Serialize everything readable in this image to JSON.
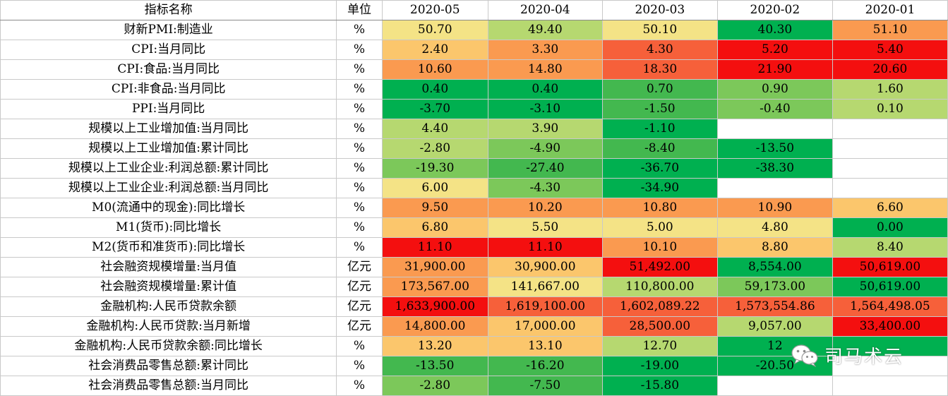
{
  "header": {
    "name_label": "指标名称",
    "unit_label": "单位",
    "periods": [
      "2020-05",
      "2020-04",
      "2020-03",
      "2020-02",
      "2020-01"
    ]
  },
  "colors": {
    "dark_green": "#00b050",
    "green": "#43b84f",
    "mid_green": "#7cc85a",
    "yellow_green": "#b6d870",
    "yellow": "#f4e386",
    "light_orange": "#fbc66c",
    "orange": "#fa9a50",
    "red_orange": "#f6603a",
    "red": "#f40f0f",
    "empty": "#ffffff"
  },
  "rows": [
    {
      "name": "财新PMI:制造业",
      "unit": "%",
      "cells": [
        {
          "v": "50.70",
          "c": "yellow"
        },
        {
          "v": "49.40",
          "c": "yellow_green"
        },
        {
          "v": "50.10",
          "c": "yellow"
        },
        {
          "v": "40.30",
          "c": "dark_green"
        },
        {
          "v": "51.10",
          "c": "orange"
        }
      ]
    },
    {
      "name": "CPI:当月同比",
      "unit": "%",
      "cells": [
        {
          "v": "2.40",
          "c": "light_orange"
        },
        {
          "v": "3.30",
          "c": "orange"
        },
        {
          "v": "4.30",
          "c": "red_orange"
        },
        {
          "v": "5.20",
          "c": "red"
        },
        {
          "v": "5.40",
          "c": "red"
        }
      ]
    },
    {
      "name": "CPI:食品:当月同比",
      "unit": "%",
      "cells": [
        {
          "v": "10.60",
          "c": "orange"
        },
        {
          "v": "14.80",
          "c": "orange"
        },
        {
          "v": "18.30",
          "c": "red_orange"
        },
        {
          "v": "21.90",
          "c": "red"
        },
        {
          "v": "20.60",
          "c": "red"
        }
      ]
    },
    {
      "name": "CPI:非食品:当月同比",
      "unit": "%",
      "cells": [
        {
          "v": "0.40",
          "c": "dark_green"
        },
        {
          "v": "0.40",
          "c": "dark_green"
        },
        {
          "v": "0.70",
          "c": "green"
        },
        {
          "v": "0.90",
          "c": "mid_green"
        },
        {
          "v": "1.60",
          "c": "yellow_green"
        }
      ]
    },
    {
      "name": "PPI:当月同比",
      "unit": "%",
      "cells": [
        {
          "v": "-3.70",
          "c": "dark_green"
        },
        {
          "v": "-3.10",
          "c": "dark_green"
        },
        {
          "v": "-1.50",
          "c": "green"
        },
        {
          "v": "-0.40",
          "c": "mid_green"
        },
        {
          "v": "0.10",
          "c": "yellow_green"
        }
      ]
    },
    {
      "name": "规模以上工业增加值:当月同比",
      "unit": "%",
      "cells": [
        {
          "v": "4.40",
          "c": "yellow_green"
        },
        {
          "v": "3.90",
          "c": "yellow_green"
        },
        {
          "v": "-1.10",
          "c": "dark_green"
        },
        {
          "v": "",
          "c": "empty"
        },
        {
          "v": "",
          "c": "empty"
        }
      ]
    },
    {
      "name": "规模以上工业增加值:累计同比",
      "unit": "%",
      "cells": [
        {
          "v": "-2.80",
          "c": "yellow_green"
        },
        {
          "v": "-4.90",
          "c": "mid_green"
        },
        {
          "v": "-8.40",
          "c": "green"
        },
        {
          "v": "-13.50",
          "c": "dark_green"
        },
        {
          "v": "",
          "c": "empty"
        }
      ]
    },
    {
      "name": "规模以上工业企业:利润总额:累计同比",
      "unit": "%",
      "cells": [
        {
          "v": "-19.30",
          "c": "mid_green"
        },
        {
          "v": "-27.40",
          "c": "green"
        },
        {
          "v": "-36.70",
          "c": "dark_green"
        },
        {
          "v": "-38.30",
          "c": "dark_green"
        },
        {
          "v": "",
          "c": "empty"
        }
      ]
    },
    {
      "name": "规模以上工业企业:利润总额:当月同比",
      "unit": "%",
      "cells": [
        {
          "v": "6.00",
          "c": "yellow"
        },
        {
          "v": "-4.30",
          "c": "mid_green"
        },
        {
          "v": "-34.90",
          "c": "dark_green"
        },
        {
          "v": "",
          "c": "empty"
        },
        {
          "v": "",
          "c": "empty"
        }
      ]
    },
    {
      "name": "M0(流通中的现金):同比增长",
      "unit": "%",
      "cells": [
        {
          "v": "9.50",
          "c": "orange"
        },
        {
          "v": "10.20",
          "c": "orange"
        },
        {
          "v": "10.80",
          "c": "orange"
        },
        {
          "v": "10.90",
          "c": "orange"
        },
        {
          "v": "6.60",
          "c": "light_orange"
        }
      ]
    },
    {
      "name": "M1(货币):同比增长",
      "unit": "%",
      "cells": [
        {
          "v": "6.80",
          "c": "light_orange"
        },
        {
          "v": "5.50",
          "c": "yellow"
        },
        {
          "v": "5.00",
          "c": "yellow"
        },
        {
          "v": "4.80",
          "c": "yellow"
        },
        {
          "v": "0.00",
          "c": "dark_green"
        }
      ]
    },
    {
      "name": "M2(货币和准货币):同比增长",
      "unit": "%",
      "cells": [
        {
          "v": "11.10",
          "c": "red"
        },
        {
          "v": "11.10",
          "c": "red"
        },
        {
          "v": "10.10",
          "c": "orange"
        },
        {
          "v": "8.80",
          "c": "light_orange"
        },
        {
          "v": "8.40",
          "c": "yellow_green"
        }
      ]
    },
    {
      "name": "社会融资规模增量:当月值",
      "unit": "亿元",
      "cells": [
        {
          "v": "31,900.00",
          "c": "orange"
        },
        {
          "v": "30,900.00",
          "c": "light_orange"
        },
        {
          "v": "51,492.00",
          "c": "red"
        },
        {
          "v": "8,554.00",
          "c": "dark_green"
        },
        {
          "v": "50,619.00",
          "c": "red"
        }
      ]
    },
    {
      "name": "社会融资规模增量:累计值",
      "unit": "亿元",
      "cells": [
        {
          "v": "173,567.00",
          "c": "orange"
        },
        {
          "v": "141,667.00",
          "c": "yellow"
        },
        {
          "v": "110,800.00",
          "c": "yellow_green"
        },
        {
          "v": "59,173.00",
          "c": "mid_green"
        },
        {
          "v": "50,619.00",
          "c": "dark_green"
        }
      ]
    },
    {
      "name": "金融机构:人民币贷款余额",
      "unit": "亿元",
      "cells": [
        {
          "v": "1,633,900.00",
          "c": "red"
        },
        {
          "v": "1,619,100.00",
          "c": "red_orange"
        },
        {
          "v": "1,602,089.22",
          "c": "red_orange"
        },
        {
          "v": "1,573,554.86",
          "c": "red_orange"
        },
        {
          "v": "1,564,498.05",
          "c": "red_orange"
        }
      ]
    },
    {
      "name": "金融机构:人民币贷款:当月新增",
      "unit": "亿元",
      "cells": [
        {
          "v": "14,800.00",
          "c": "orange"
        },
        {
          "v": "17,000.00",
          "c": "light_orange"
        },
        {
          "v": "28,500.00",
          "c": "red_orange"
        },
        {
          "v": "9,057.00",
          "c": "yellow_green"
        },
        {
          "v": "33,400.00",
          "c": "red"
        }
      ]
    },
    {
      "name": "金融机构:人民币贷款余额:同比增长",
      "unit": "%",
      "cells": [
        {
          "v": "13.20",
          "c": "light_orange"
        },
        {
          "v": "13.10",
          "c": "light_orange"
        },
        {
          "v": "12.70",
          "c": "yellow_green"
        },
        {
          "v": "12",
          "c": "dark_green"
        },
        {
          "v": "",
          "c": "dark_green"
        }
      ]
    },
    {
      "name": "社会消费品零售总额:累计同比",
      "unit": "%",
      "cells": [
        {
          "v": "-13.50",
          "c": "green"
        },
        {
          "v": "-16.20",
          "c": "green"
        },
        {
          "v": "-19.00",
          "c": "dark_green"
        },
        {
          "v": "-20.50",
          "c": "dark_green"
        },
        {
          "v": "",
          "c": "empty"
        }
      ]
    },
    {
      "name": "社会消费品零售总额:当月同比",
      "unit": "%",
      "cells": [
        {
          "v": "-2.80",
          "c": "mid_green"
        },
        {
          "v": "-7.50",
          "c": "green"
        },
        {
          "v": "-15.80",
          "c": "dark_green"
        },
        {
          "v": "",
          "c": "empty"
        },
        {
          "v": "",
          "c": "empty"
        }
      ]
    }
  ],
  "watermark": {
    "text": "司马术云",
    "icon": "wechat-icon"
  }
}
